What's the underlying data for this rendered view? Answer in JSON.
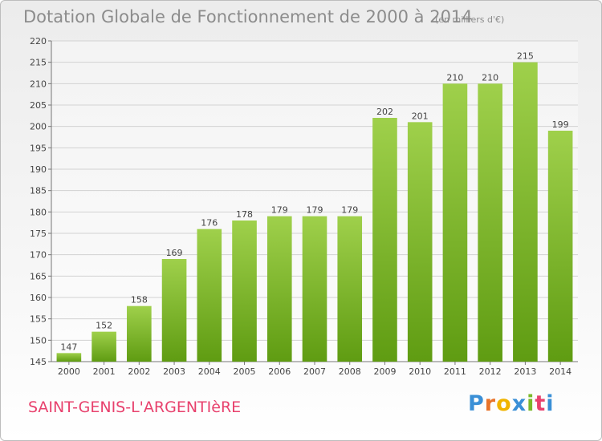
{
  "header": {
    "title": "Dotation Globale de Fonctionnement de 2000 à 2014",
    "unit_note": "(en milliers d'€)"
  },
  "footer": {
    "commune": "SAINT-GENIS-L'ARGENTIèRE",
    "brand": "Proxiti",
    "brand_letters": [
      "P",
      "r",
      "o",
      "x",
      "i",
      "t",
      "i"
    ]
  },
  "colors": {
    "bar_light": "#9fd04b",
    "bar_dark": "#5f9c12",
    "title": "#8c8c8c",
    "commune": "#e8416d"
  },
  "chart_data": {
    "type": "bar",
    "categories": [
      "2000",
      "2001",
      "2002",
      "2003",
      "2004",
      "2005",
      "2006",
      "2007",
      "2008",
      "2009",
      "2010",
      "2011",
      "2012",
      "2013",
      "2014"
    ],
    "values": [
      147,
      152,
      158,
      169,
      176,
      178,
      179,
      179,
      179,
      202,
      201,
      210,
      210,
      215,
      199
    ],
    "title": "Dotation Globale de Fonctionnement de 2000 à 2014",
    "subtitle": "(en milliers d'€)",
    "xlabel": "",
    "ylabel": "",
    "ylim": [
      145,
      220
    ],
    "yticks": [
      145,
      150,
      155,
      160,
      165,
      170,
      175,
      180,
      185,
      190,
      195,
      200,
      205,
      210,
      215,
      220
    ],
    "grid": true,
    "data_labels": true
  }
}
